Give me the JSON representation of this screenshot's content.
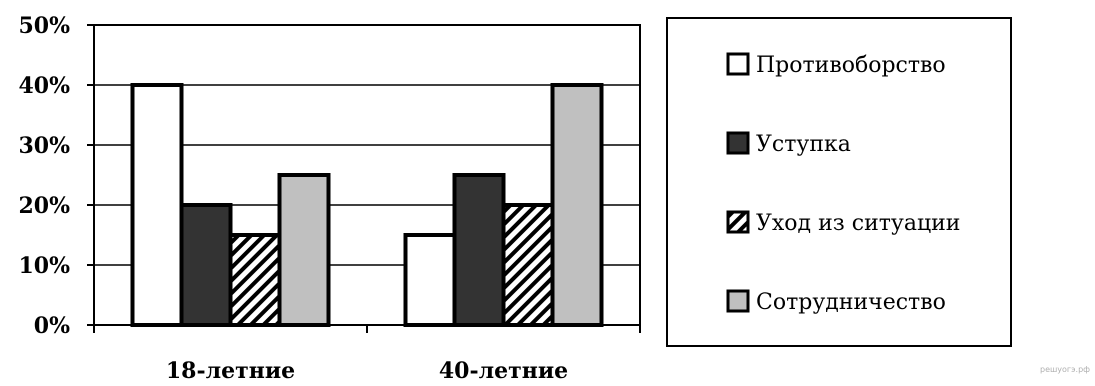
{
  "chart_data": {
    "type": "bar",
    "categories": [
      "18-летние",
      "40-летние"
    ],
    "series": [
      {
        "name": "Противоборство",
        "values": [
          40,
          15
        ],
        "fill": "#ffffff"
      },
      {
        "name": "Уступка",
        "values": [
          20,
          25
        ],
        "fill": "#333333"
      },
      {
        "name": "Уход из ситуации",
        "values": [
          15,
          20
        ],
        "fill": "hatch"
      },
      {
        "name": "Сотрудничество",
        "values": [
          25,
          40
        ],
        "fill": "#c0c0c0"
      }
    ],
    "ylim": [
      0,
      50
    ],
    "yticks": [
      0,
      10,
      20,
      30,
      40,
      50
    ],
    "ytick_labels": [
      "0%",
      "10%",
      "20%",
      "30%",
      "40%",
      "50%"
    ],
    "title": "",
    "xlabel": "",
    "ylabel": "",
    "grid": true,
    "legend_position": "right"
  },
  "watermark": "решуогэ.рф"
}
